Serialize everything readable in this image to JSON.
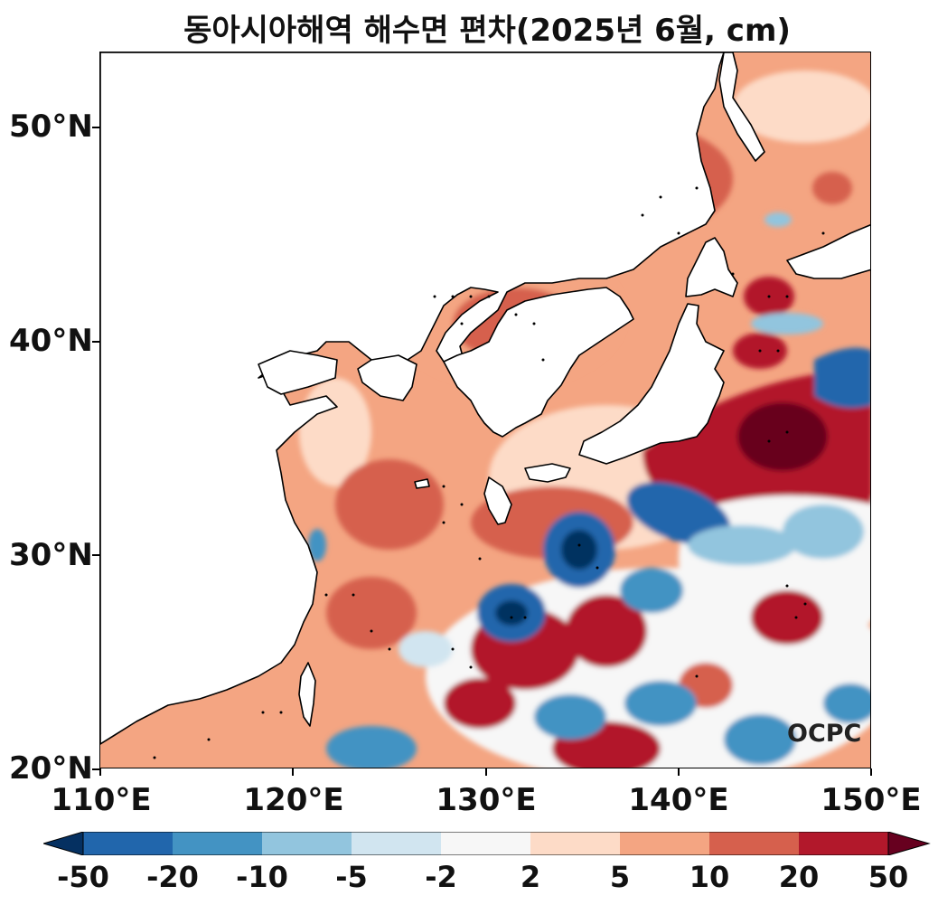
{
  "title": "동아시아해역 해수면 편차(2025년 6월, cm)",
  "lat_labels": [
    "20°N",
    "30°N",
    "40°N",
    "50°N"
  ],
  "lon_labels": [
    "110°E",
    "120°E",
    "130°E",
    "140°E",
    "150°E"
  ],
  "logo": "OCPC",
  "colorbar": {
    "labels": [
      "-50",
      "-20",
      "-10",
      "-5",
      "-2",
      "2",
      "5",
      "10",
      "20",
      "50"
    ],
    "colors": [
      "#053061",
      "#2166ac",
      "#4393c3",
      "#92c5de",
      "#d1e5f0",
      "#f7f7f7",
      "#fddbc7",
      "#f4a582",
      "#d6604d",
      "#b2182b",
      "#67001f"
    ]
  },
  "map": {
    "extent": {
      "lon": [
        110,
        150
      ],
      "lat": [
        20,
        53.5
      ]
    },
    "land_color": "#ffffff",
    "coastline_color": "#000000"
  }
}
